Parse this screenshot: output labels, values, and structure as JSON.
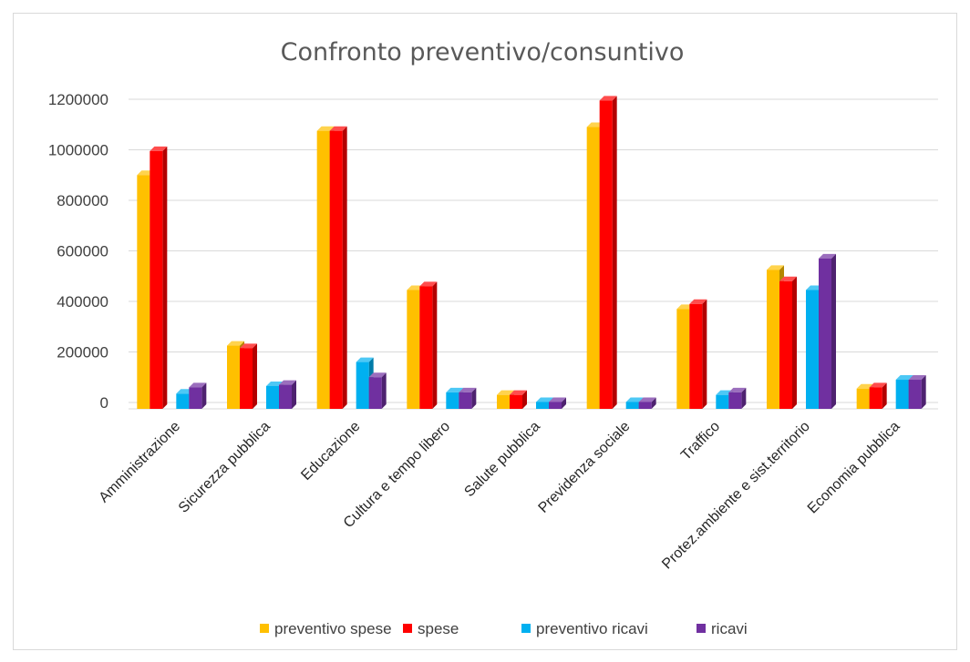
{
  "chart_data": {
    "type": "bar",
    "title": "Confronto preventivo/consuntivo",
    "xlabel": "",
    "ylabel": "",
    "ylim": [
      0,
      1200000
    ],
    "yticks": [
      "0",
      "200000",
      "400000",
      "600000",
      "800000",
      "1000000",
      "1200000"
    ],
    "ytick_values": [
      0,
      200000,
      400000,
      600000,
      800000,
      1000000,
      1200000
    ],
    "grid": true,
    "legend_position": "bottom",
    "style": "3d-columns",
    "categories": [
      "Amministrazione",
      "Sicurezza pubblica",
      "Educazione",
      "Cultura e tempo libero",
      "Salute pubblica",
      "Previdenza sociale",
      "Traffico",
      "Protez.ambiente e sist.territorio",
      "Economia pubblica"
    ],
    "series": [
      {
        "name": "preventivo spese",
        "color": "#FFC000",
        "values": [
          900000,
          225000,
          1075000,
          445000,
          30000,
          1090000,
          370000,
          525000,
          55000
        ]
      },
      {
        "name": "spese",
        "color": "#FF0000",
        "values": [
          995000,
          215000,
          1075000,
          460000,
          30000,
          1195000,
          390000,
          480000,
          60000
        ]
      },
      {
        "name": "preventivo ricavi",
        "color": "#00B0F0",
        "values": [
          35000,
          65000,
          160000,
          40000,
          2000,
          2000,
          30000,
          445000,
          90000
        ]
      },
      {
        "name": "ricavi",
        "color": "#7030A0",
        "values": [
          60000,
          70000,
          100000,
          40000,
          2000,
          2000,
          40000,
          570000,
          90000
        ]
      }
    ]
  }
}
